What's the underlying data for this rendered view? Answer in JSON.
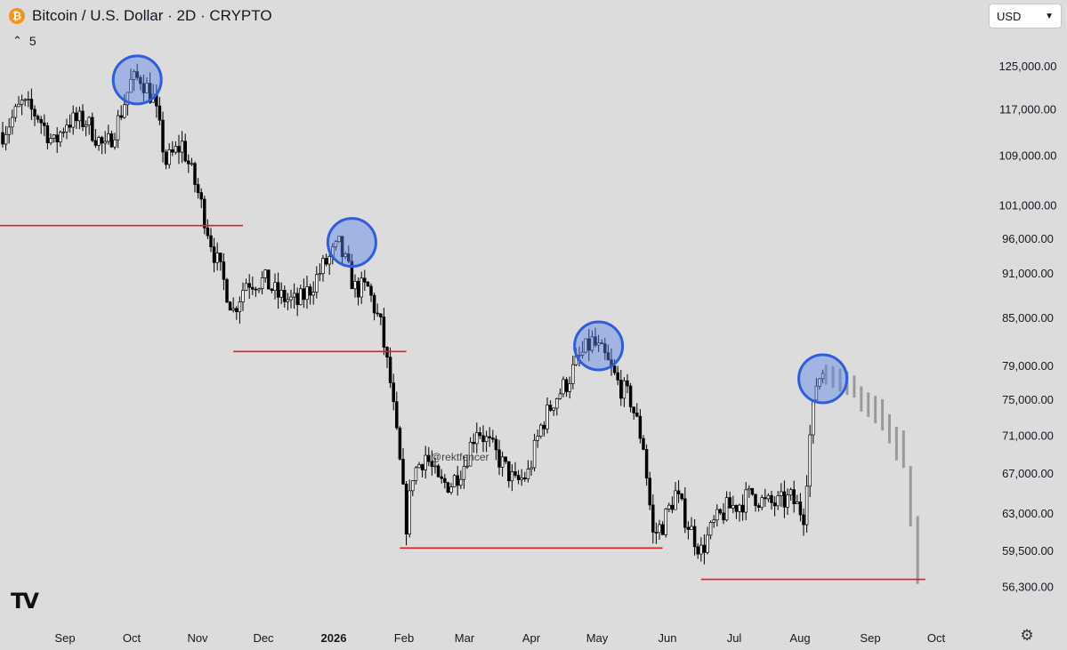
{
  "header": {
    "symbol_icon": "bitcoin-icon",
    "title": "Bitcoin / U.S. Dollar · 2D · CRYPTO",
    "indicator_label": "5"
  },
  "currency_select": {
    "value": "USD"
  },
  "watermark": "@rektfencer",
  "colors": {
    "background": "#dcdcdc",
    "bull_body": "#ffffff",
    "bear_body": "#000000",
    "projection": "#9a9a9a",
    "support_line": "#e02020",
    "circle_stroke": "#2f5de0",
    "circle_fill": "rgba(90,130,230,0.45)"
  },
  "chart_data": {
    "type": "candlestick",
    "title": "Bitcoin / U.S. Dollar · 2D · CRYPTO",
    "price_scale": "log",
    "ylim": [
      54000,
      132000
    ],
    "x_tick_labels": [
      "Sep",
      "Oct",
      "Nov",
      "Dec",
      "2026",
      "Feb",
      "Mar",
      "Apr",
      "May",
      "Jun",
      "Jul",
      "Aug",
      "Sep",
      "Oct"
    ],
    "y_tick_labels": [
      "125,000.00",
      "117,000.00",
      "109,000.00",
      "101,000.00",
      "96,000.00",
      "91,000.00",
      "85,000.00",
      "79,000.00",
      "75,000.00",
      "71,000.00",
      "67,000.00",
      "63,000.00",
      "59,500.00",
      "56,300.00"
    ],
    "y_tick_values": [
      125000,
      117000,
      109000,
      101000,
      96000,
      91000,
      85000,
      79000,
      75000,
      71000,
      67000,
      63000,
      59500,
      56300
    ],
    "x_index": "candle number (2-day bars), 0 = late August",
    "anchors": [
      {
        "i": 0,
        "p": 113000
      },
      {
        "i": 6,
        "p": 118000
      },
      {
        "i": 11,
        "p": 116000
      },
      {
        "i": 16,
        "p": 111000
      },
      {
        "i": 20,
        "p": 115000
      },
      {
        "i": 26,
        "p": 115000
      },
      {
        "i": 32,
        "p": 110000
      },
      {
        "i": 36,
        "p": 115000
      },
      {
        "i": 40,
        "p": 122000
      },
      {
        "i": 43,
        "p": 123000
      },
      {
        "i": 47,
        "p": 119000
      },
      {
        "i": 51,
        "p": 108000
      },
      {
        "i": 56,
        "p": 111000
      },
      {
        "i": 61,
        "p": 103000
      },
      {
        "i": 66,
        "p": 94000
      },
      {
        "i": 72,
        "p": 86000
      },
      {
        "i": 76,
        "p": 90000
      },
      {
        "i": 82,
        "p": 90000
      },
      {
        "i": 86,
        "p": 88000
      },
      {
        "i": 92,
        "p": 87000
      },
      {
        "i": 96,
        "p": 89000
      },
      {
        "i": 100,
        "p": 92000
      },
      {
        "i": 105,
        "p": 95000
      },
      {
        "i": 110,
        "p": 89000
      },
      {
        "i": 114,
        "p": 89000
      },
      {
        "i": 118,
        "p": 84000
      },
      {
        "i": 121,
        "p": 77000
      },
      {
        "i": 124,
        "p": 68000
      },
      {
        "i": 126,
        "p": 62000
      },
      {
        "i": 128,
        "p": 67000
      },
      {
        "i": 132,
        "p": 69000
      },
      {
        "i": 136,
        "p": 66000
      },
      {
        "i": 140,
        "p": 66000
      },
      {
        "i": 144,
        "p": 68000
      },
      {
        "i": 148,
        "p": 72000
      },
      {
        "i": 152,
        "p": 70000
      },
      {
        "i": 156,
        "p": 68000
      },
      {
        "i": 160,
        "p": 66000
      },
      {
        "i": 164,
        "p": 67000
      },
      {
        "i": 168,
        "p": 72000
      },
      {
        "i": 172,
        "p": 75000
      },
      {
        "i": 176,
        "p": 77000
      },
      {
        "i": 180,
        "p": 80000
      },
      {
        "i": 184,
        "p": 82000
      },
      {
        "i": 188,
        "p": 80000
      },
      {
        "i": 192,
        "p": 77000
      },
      {
        "i": 196,
        "p": 75000
      },
      {
        "i": 200,
        "p": 70000
      },
      {
        "i": 203,
        "p": 61000
      },
      {
        "i": 206,
        "p": 62000
      },
      {
        "i": 210,
        "p": 65000
      },
      {
        "i": 214,
        "p": 62000
      },
      {
        "i": 218,
        "p": 59500
      },
      {
        "i": 222,
        "p": 62000
      },
      {
        "i": 226,
        "p": 63500
      },
      {
        "i": 230,
        "p": 64000
      },
      {
        "i": 234,
        "p": 65000
      },
      {
        "i": 238,
        "p": 64000
      },
      {
        "i": 242,
        "p": 64000
      },
      {
        "i": 246,
        "p": 64500
      },
      {
        "i": 250,
        "p": 63000
      },
      {
        "i": 252,
        "p": 71000
      },
      {
        "i": 254,
        "p": 77000
      },
      {
        "i": 256,
        "p": 78500
      }
    ],
    "projection_bars": [
      {
        "high": 79200,
        "low": 76800
      },
      {
        "high": 79000,
        "low": 76400
      },
      {
        "high": 78700,
        "low": 76000
      },
      {
        "high": 78400,
        "low": 75600
      },
      {
        "high": 77900,
        "low": 75300
      },
      {
        "high": 76600,
        "low": 73700
      },
      {
        "high": 75900,
        "low": 73100
      },
      {
        "high": 75500,
        "low": 72400
      },
      {
        "high": 75100,
        "low": 71600
      },
      {
        "high": 73400,
        "low": 70200
      },
      {
        "high": 72000,
        "low": 68400
      },
      {
        "high": 71600,
        "low": 67600
      },
      {
        "high": 67800,
        "low": 61800
      },
      {
        "high": 62800,
        "low": 56600
      }
    ],
    "support_lines": [
      {
        "price": 98000,
        "from_index": -1,
        "to_index": 75
      },
      {
        "price": 80800,
        "from_index": 72,
        "to_index": 126
      },
      {
        "price": 59800,
        "from_index": 124,
        "to_index": 206
      },
      {
        "price": 57000,
        "from_index": 218,
        "to_index": 288
      }
    ],
    "highlight_circles": [
      {
        "index": 42,
        "price": 122500
      },
      {
        "index": 109,
        "price": 95500
      },
      {
        "index": 186,
        "price": 81500
      },
      {
        "index": 256,
        "price": 77500
      }
    ]
  }
}
